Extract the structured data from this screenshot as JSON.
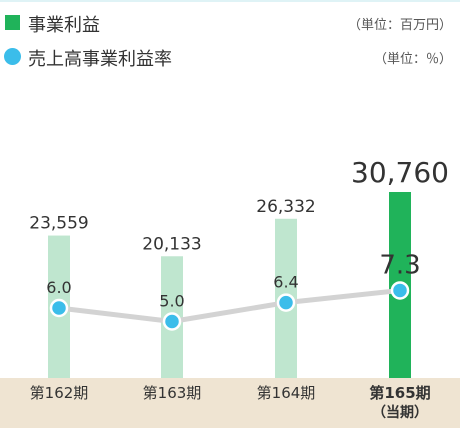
{
  "legend": {
    "bar": {
      "label": "事業利益",
      "unit": "（単位：百万円）",
      "color": "#20b35a"
    },
    "line": {
      "label": "売上高事業利益率",
      "unit": "（単位：％）",
      "color": "#3bbdea"
    }
  },
  "chart_data": {
    "type": "bar",
    "categories": [
      "第162期",
      "第163期",
      "第164期",
      "第165期"
    ],
    "category_notes": [
      "",
      "",
      "",
      "（当期）"
    ],
    "highlight_index": 3,
    "series": [
      {
        "name": "事業利益",
        "type": "bar",
        "unit": "百万円",
        "values": [
          23559,
          20133,
          26332,
          30760
        ],
        "labels": [
          "23,559",
          "20,133",
          "26,332",
          "30,760"
        ]
      },
      {
        "name": "売上高事業利益率",
        "type": "line",
        "unit": "％",
        "values": [
          6.0,
          5.0,
          6.4,
          7.3
        ],
        "labels": [
          "6.0",
          "5.0",
          "6.4",
          "7.3"
        ]
      }
    ],
    "colors": {
      "bar": "#bfe6cf",
      "bar_highlight": "#20b35a",
      "line": "#d3d3d3",
      "marker": "#3bbdea",
      "axis_band": "#efe4d2"
    }
  }
}
